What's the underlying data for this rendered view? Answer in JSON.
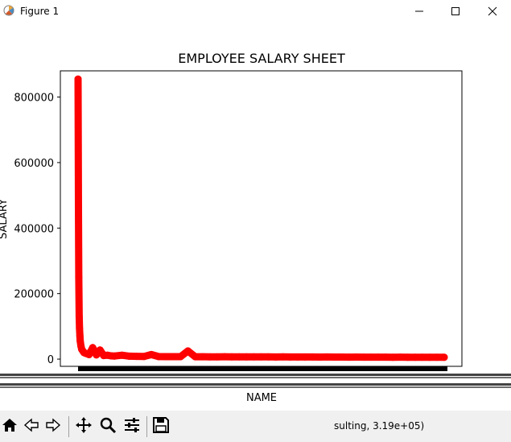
{
  "window": {
    "title": "Figure 1",
    "icon": "matplotlib-logo-icon"
  },
  "controls": {
    "minimize": "minimize-icon",
    "maximize": "maximize-icon",
    "close": "close-icon"
  },
  "toolbar": {
    "buttons": [
      "home-icon",
      "back-arrow-icon",
      "forward-arrow-icon",
      "pan-icon",
      "zoom-icon",
      "subplots-config-icon",
      "save-icon"
    ],
    "status_text": "sulting, 3.19e+05)"
  },
  "chart_data": {
    "type": "line",
    "title": "EMPLOYEE SALARY SHEET",
    "xlabel": "NAME",
    "ylabel": "SALARY",
    "ylim": [
      -22000,
      880000
    ],
    "yticks": [
      0,
      200000,
      400000,
      600000,
      800000
    ],
    "ytick_labels": [
      "0",
      "200000",
      "400000",
      "600000",
      "800000"
    ],
    "grid": false,
    "color": "#ff0000",
    "note_x_tick_labels": "",
    "x": [
      0,
      1,
      2,
      3,
      4,
      5,
      6,
      8,
      10,
      13,
      16,
      20,
      25,
      30,
      40,
      50,
      60,
      70,
      80,
      90,
      100,
      120,
      140,
      160,
      180,
      200,
      220,
      240,
      260,
      280,
      300,
      320,
      340,
      360,
      380,
      400,
      420,
      440,
      460,
      480,
      500,
      520,
      540,
      560,
      580,
      600,
      620,
      640,
      660,
      680,
      700,
      720,
      740,
      760,
      780,
      800,
      820,
      840,
      860,
      880,
      900,
      920,
      940,
      960,
      980,
      1000
    ],
    "values": [
      855000,
      460000,
      250000,
      130000,
      95000,
      70000,
      55000,
      40000,
      30000,
      25000,
      20000,
      18000,
      16000,
      14000,
      35000,
      13000,
      28000,
      11000,
      12000,
      10000,
      9500,
      12000,
      9000,
      8500,
      8000,
      14000,
      7800,
      7500,
      7600,
      7400,
      25000,
      7200,
      7300,
      7100,
      7000,
      7200,
      6900,
      7000,
      6800,
      6900,
      6700,
      6800,
      6600,
      6700,
      6500,
      6600,
      6400,
      6500,
      6300,
      6400,
      6200,
      6300,
      6100,
      6200,
      6000,
      6100,
      5900,
      6000,
      5800,
      5900,
      5800,
      5700,
      5800,
      5600,
      5700,
      5500
    ]
  }
}
